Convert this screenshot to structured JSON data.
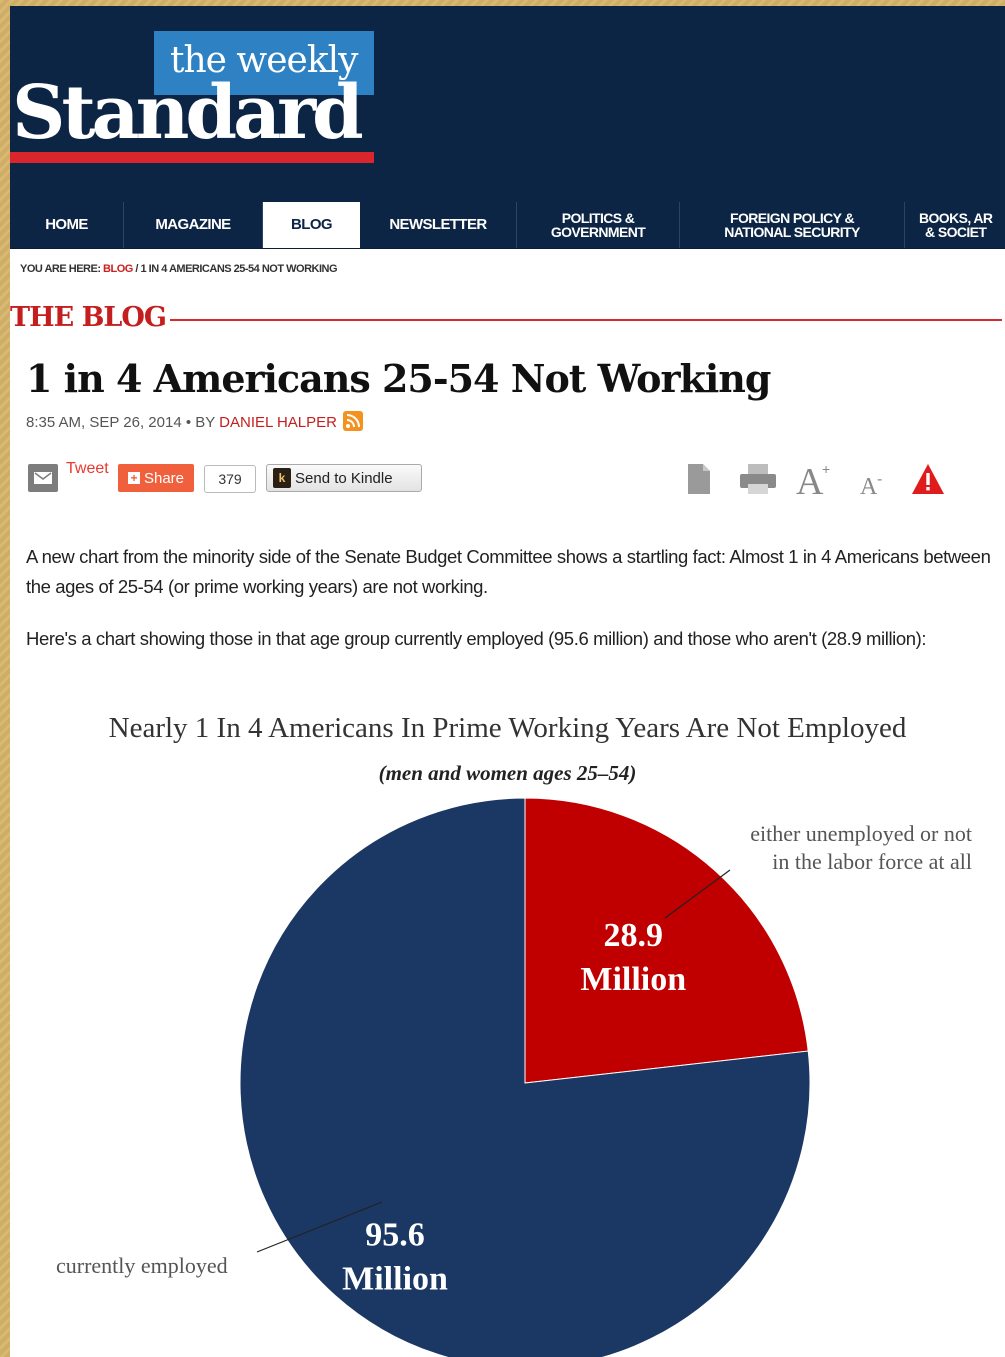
{
  "masthead": {
    "logo_top": "the weekly",
    "logo_main": "Standard"
  },
  "nav": {
    "items": [
      {
        "label": "HOME"
      },
      {
        "label": "MAGAZINE"
      },
      {
        "label": "BLOG",
        "active": true
      },
      {
        "label": "NEWSLETTER"
      },
      {
        "label": "POLITICS &",
        "label2": "GOVERNMENT"
      },
      {
        "label": "FOREIGN POLICY &",
        "label2": "NATIONAL SECURITY"
      },
      {
        "label": "BOOKS, AR",
        "label2": "& SOCIET"
      }
    ]
  },
  "breadcrumb": {
    "prefix": "YOU ARE HERE: ",
    "link": "BLOG",
    "rest": " / 1 IN 4 AMERICANS 25-54 NOT WORKING"
  },
  "section": {
    "heading": "THE BLOG"
  },
  "article": {
    "title": "1 in 4 Americans 25-54 Not Working",
    "date": "8:35 AM, SEP 26, 2014 • BY ",
    "author": "DANIEL HALPER",
    "paragraphs": [
      "A new chart from the minority side of the Senate Budget Committee shows a startling fact: Almost 1 in 4 Americans between the ages of 25-54 (or prime working years) are not working.",
      "Here's a chart showing those in that age group currently employed (95.6 million) and those who aren't (28.9 million):"
    ]
  },
  "share": {
    "tweet": "Tweet",
    "share": "Share",
    "count": "379",
    "kindle": "Send to Kindle"
  },
  "icons": {
    "email": "email-icon",
    "rss": "rss-icon",
    "kindle": "kindle-icon",
    "document": "document-icon",
    "print": "print-icon",
    "font_up": "font-increase-icon",
    "font_down": "font-decrease-icon",
    "alert": "alert-icon"
  },
  "colors": {
    "navy": "#0d2545",
    "red": "#c00000",
    "pie_navy": "#1b3764",
    "accent": "#c41e1e"
  },
  "chart_data": {
    "type": "pie",
    "title": "Nearly 1 In 4 Americans In Prime Working Years Are Not Employed",
    "subtitle": "(men and women ages 25–54)",
    "slices": [
      {
        "name": "either unemployed or not in the labor force at all",
        "value": 28.9,
        "label": [
          "28.9",
          "Million"
        ],
        "color": "#c00000"
      },
      {
        "name": "currently employed",
        "value": 95.6,
        "label": [
          "95.6",
          "Million"
        ],
        "color": "#1b3764"
      }
    ],
    "annotations": {
      "unemployed": [
        "either unemployed or not",
        "in the labor force at all"
      ],
      "employed": "currently employed"
    }
  }
}
